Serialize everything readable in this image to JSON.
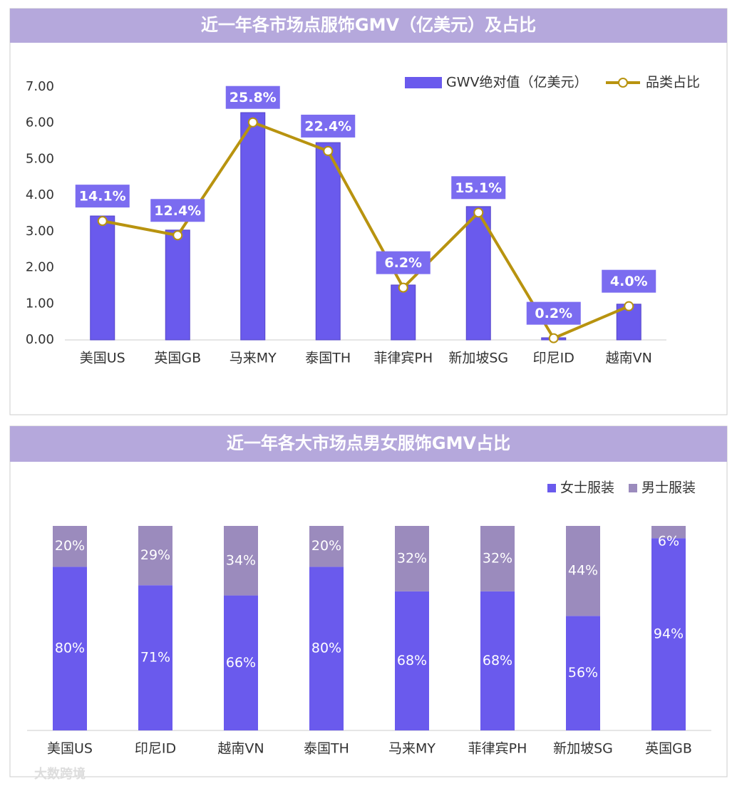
{
  "chart_data": [
    {
      "type": "bar",
      "title": "近一年各市场点服饰GMV（亿美元）及占比",
      "categories": [
        "美国US",
        "英国GB",
        "马来MY",
        "泰国TH",
        "菲律宾PH",
        "新加坡SG",
        "印尼ID",
        "越南VN"
      ],
      "series": [
        {
          "name": "GWV绝对值（亿美元）",
          "color": "#6a5aed",
          "values": [
            3.43,
            3.04,
            6.29,
            5.46,
            1.52,
            3.69,
            0.06,
            0.99
          ]
        },
        {
          "name": "品类占比",
          "type": "line",
          "axis": "y2",
          "color": "#b8930f",
          "values": [
            14.1,
            12.4,
            25.8,
            22.4,
            6.2,
            15.1,
            0.2,
            4.0
          ],
          "value_labels": [
            "14.1%",
            "12.4%",
            "25.8%",
            "22.4%",
            "6.2%",
            "15.1%",
            "0.2%",
            "4.0%"
          ]
        }
      ],
      "ylim": [
        0,
        7
      ],
      "yticks": [
        {
          "value": 0,
          "label": "0.00"
        },
        {
          "value": 1,
          "label": "1.00"
        },
        {
          "value": 2,
          "label": "2.00"
        },
        {
          "value": 3,
          "label": "3.00"
        },
        {
          "value": 4,
          "label": "4.00"
        },
        {
          "value": 5,
          "label": "5.00"
        },
        {
          "value": 6,
          "label": "6.00"
        },
        {
          "value": 7,
          "label": "7.00"
        }
      ],
      "y2lim": [
        0,
        30
      ],
      "legend": "top-right"
    },
    {
      "type": "stacked_bar",
      "title": "近一年各大市场点男女服饰GMV占比",
      "categories": [
        "美国US",
        "印尼ID",
        "越南VN",
        "泰国TH",
        "马来MY",
        "菲律宾PH",
        "新加坡SG",
        "英国GB"
      ],
      "series": [
        {
          "name": "女士服装",
          "color": "#6a5aed",
          "values": [
            80,
            71,
            66,
            80,
            68,
            68,
            56,
            94
          ],
          "value_labels": [
            "80%",
            "71%",
            "66%",
            "80%",
            "68%",
            "68%",
            "56%",
            "94%"
          ]
        },
        {
          "name": "男士服装",
          "color": "#9b8bbd",
          "values": [
            20,
            29,
            34,
            20,
            32,
            32,
            44,
            6
          ],
          "value_labels": [
            "20%",
            "29%",
            "34%",
            "20%",
            "32%",
            "32%",
            "44%",
            "6%"
          ]
        }
      ],
      "ylim": [
        0,
        100
      ],
      "legend": "top-right"
    }
  ],
  "watermark": "大数跨境"
}
